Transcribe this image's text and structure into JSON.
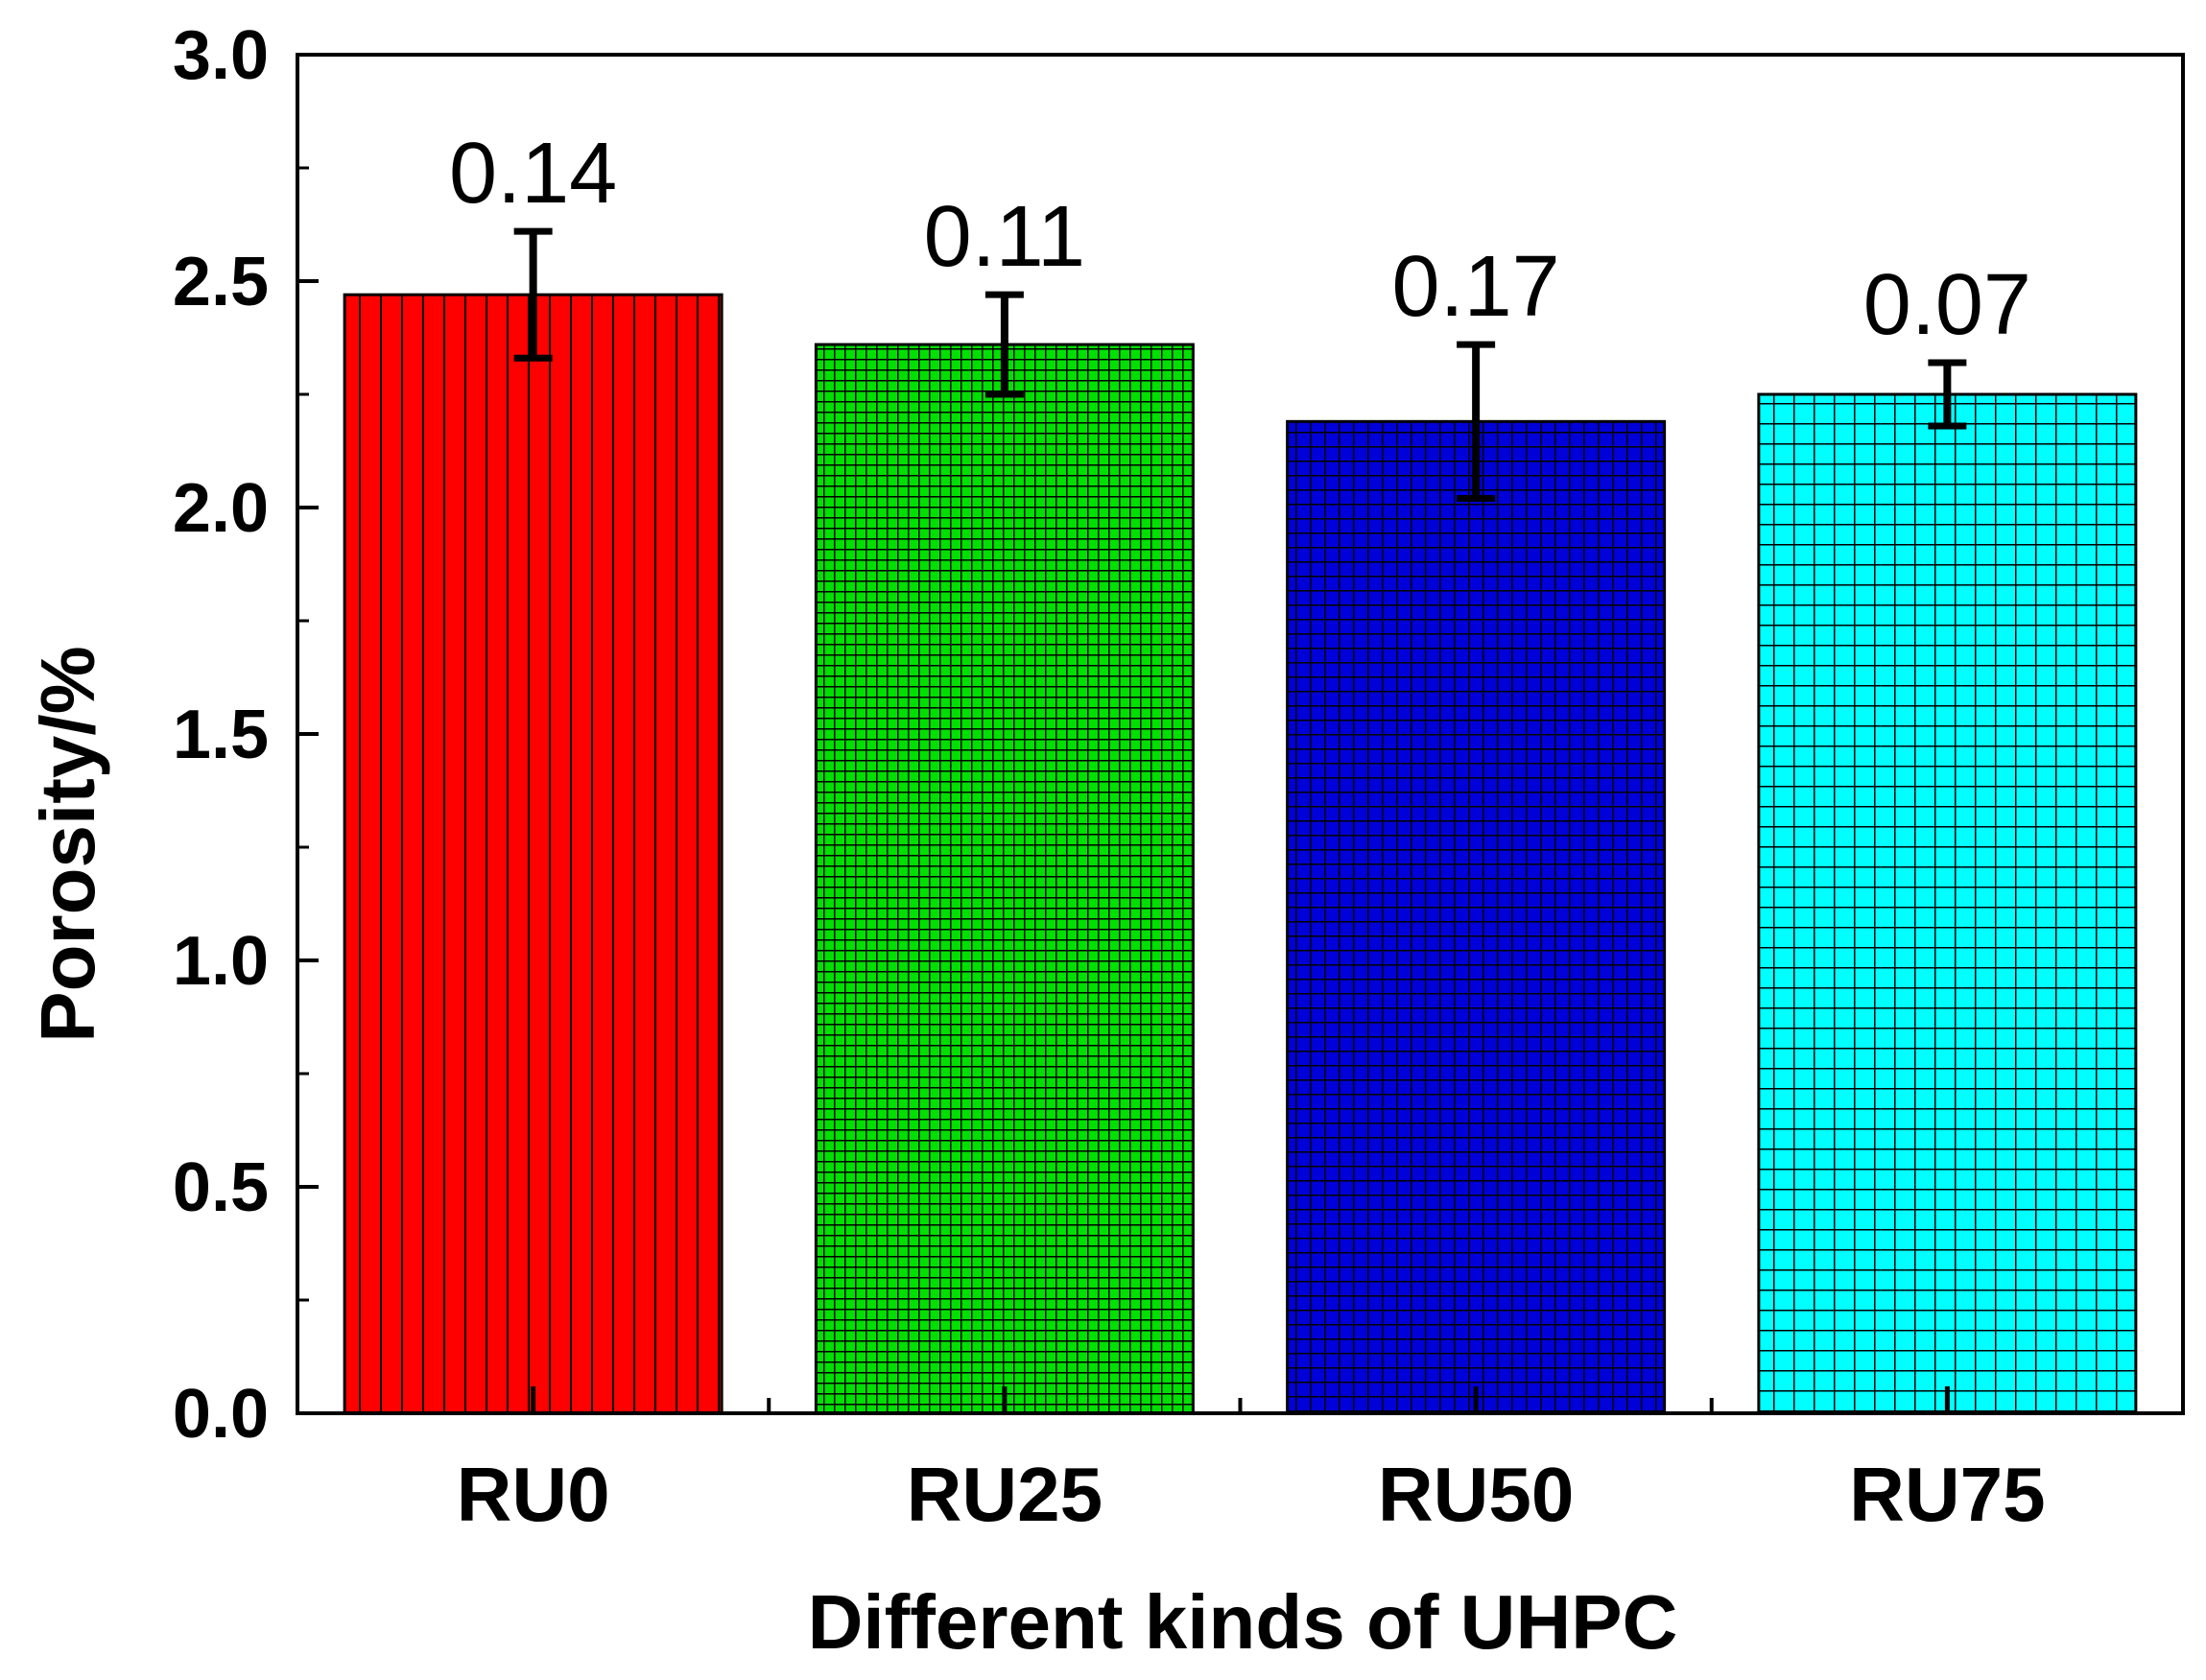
{
  "chart_data": {
    "type": "bar",
    "title": "",
    "xlabel": "Different kinds  of UHPC",
    "ylabel": "Porosity/%",
    "categories": [
      "RU0",
      "RU25",
      "RU50",
      "RU75"
    ],
    "values": [
      2.47,
      2.36,
      2.19,
      2.25
    ],
    "errors": [
      0.14,
      0.11,
      0.17,
      0.07
    ],
    "data_labels": [
      "0.14",
      "0.11",
      "0.17",
      "0.07"
    ],
    "colors": [
      "#ff0000",
      "#00e000",
      "#0000d8",
      "#00ffff"
    ],
    "patterns": [
      "vertical-lines",
      "fine-grid",
      "medium-grid",
      "coarse-grid"
    ],
    "ylim": [
      0,
      3.0
    ],
    "yticks": [
      0.0,
      0.5,
      1.0,
      1.5,
      2.0,
      2.5,
      3.0
    ],
    "ytick_labels": [
      "0.0",
      "0.5",
      "1.0",
      "1.5",
      "2.0",
      "2.5",
      "3.0"
    ],
    "grid": false,
    "legend": false
  }
}
